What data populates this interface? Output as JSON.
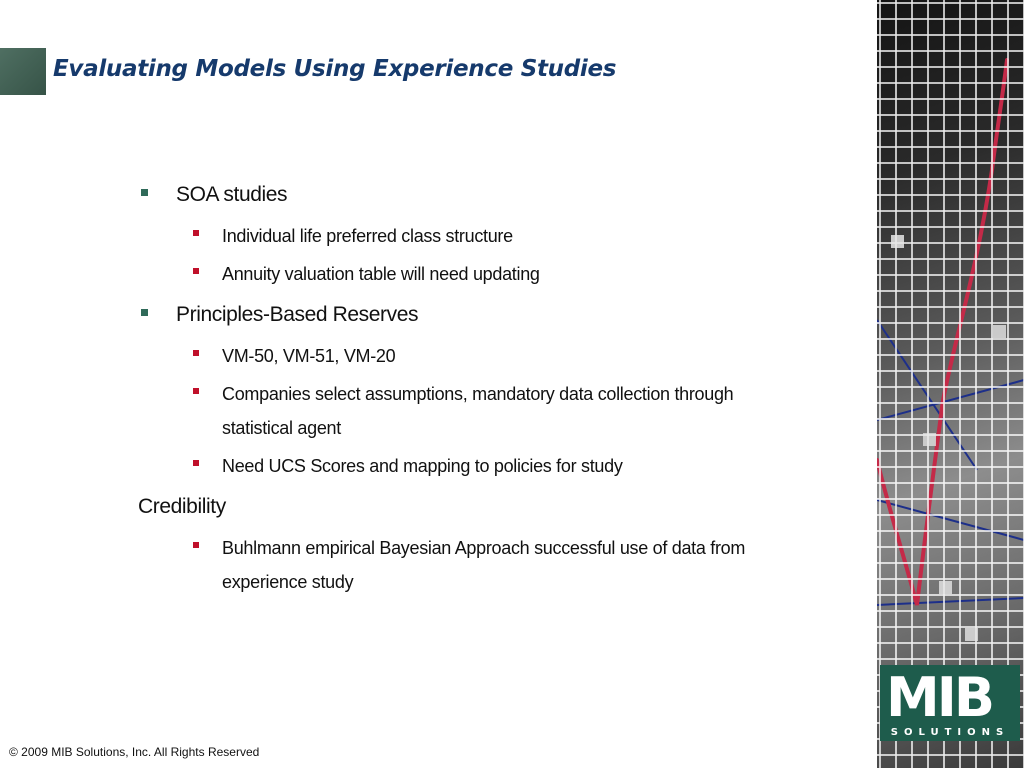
{
  "slide": {
    "title": "Evaluating Models Using Experience Studies",
    "accent_color": "#2f6a59",
    "sub_bullet_color": "#c0102a",
    "title_color": "#163a6c"
  },
  "bullets": [
    {
      "text": "SOA studies",
      "children": [
        "Individual life preferred class structure",
        "Annuity valuation table will need updating"
      ]
    },
    {
      "text": "Principles-Based Reserves",
      "children": [
        "VM-50, VM-51, VM-20",
        "Companies select assumptions, mandatory data collection through statistical agent",
        "Need UCS Scores and mapping to policies for study"
      ]
    },
    {
      "text": "Credibility",
      "children": [
        "Buhlmann empirical Bayesian Approach successful use of data from experience study"
      ]
    }
  ],
  "logo": {
    "mark": "MIB",
    "sub": "SOLUTIONS"
  },
  "footer": {
    "copyright": "© 2009 MIB Solutions, Inc. All Rights Reserved"
  }
}
